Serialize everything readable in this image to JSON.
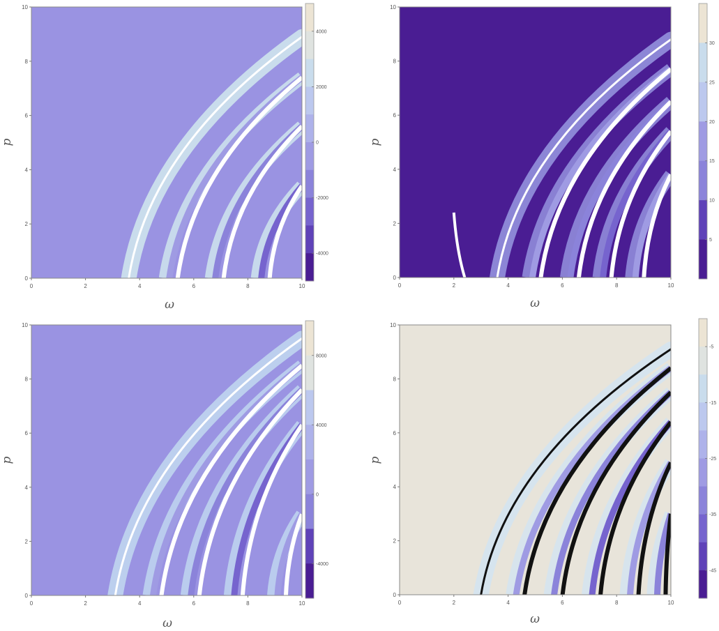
{
  "chart_data": [
    {
      "type": "heatmap",
      "title": "",
      "xlabel": "ω",
      "ylabel": "p",
      "xlim": [
        0,
        10
      ],
      "ylim": [
        0,
        10
      ],
      "x_ticks": [
        "0",
        "2",
        "4",
        "6",
        "8",
        "10"
      ],
      "y_ticks": [
        "0",
        "2",
        "4",
        "6",
        "8",
        "10"
      ],
      "colorbar": {
        "range": [
          -5000,
          5000
        ],
        "labels": [
          "-4000",
          "-2000",
          "0",
          "2000",
          "4000"
        ],
        "label_values": [
          -4000,
          -2000,
          0,
          2000,
          4000
        ],
        "bands": 10
      },
      "background_color": "#9a93e2",
      "contour_color": "#9e97da",
      "branch_fill": "#c9dcec",
      "branch_stroke": "#ffffff",
      "front": {
        "start": [
          3.6,
          0
        ],
        "end": [
          10,
          8.9
        ]
      },
      "curves": [
        {
          "start": [
            5.2,
            0
          ],
          "end": [
            10,
            7.4
          ]
        },
        {
          "start": [
            6.9,
            0
          ],
          "end": [
            10,
            5.6
          ]
        },
        {
          "start": [
            8.6,
            0
          ],
          "end": [
            10,
            3.4
          ]
        }
      ]
    },
    {
      "type": "heatmap",
      "title": "",
      "xlabel": "ω",
      "ylabel": "p",
      "xlim": [
        0,
        10
      ],
      "ylim": [
        0,
        10
      ],
      "x_ticks": [
        "0",
        "2",
        "4",
        "6",
        "8",
        "10"
      ],
      "y_ticks": [
        "0",
        "2",
        "4",
        "6",
        "8",
        "10"
      ],
      "colorbar": {
        "range": [
          0,
          35
        ],
        "labels": [
          "5",
          "10",
          "15",
          "20",
          "25",
          "30"
        ],
        "label_values": [
          5,
          10,
          15,
          20,
          25,
          30
        ],
        "bands": 7
      },
      "background_color": "#4a1d93",
      "branch_fill": "#8c86d6",
      "branch_stroke": "#ffffff",
      "front": {
        "start": [
          3.6,
          0
        ],
        "end": [
          10,
          8.8
        ]
      },
      "spur": {
        "start": [
          2.0,
          2.4
        ],
        "end": [
          2.4,
          0
        ]
      },
      "curves": [
        {
          "start": [
            5.0,
            0
          ],
          "end": [
            10,
            7.7
          ]
        },
        {
          "start": [
            6.4,
            0
          ],
          "end": [
            10,
            6.5
          ]
        },
        {
          "start": [
            7.6,
            0
          ],
          "end": [
            10,
            5.4
          ]
        },
        {
          "start": [
            8.8,
            0
          ],
          "end": [
            10,
            3.8
          ]
        }
      ]
    },
    {
      "type": "heatmap",
      "title": "",
      "xlabel": "ω",
      "ylabel": "p",
      "xlim": [
        0,
        10
      ],
      "ylim": [
        0,
        10
      ],
      "x_ticks": [
        "0",
        "2",
        "4",
        "6",
        "8",
        "10"
      ],
      "y_ticks": [
        "0",
        "2",
        "4",
        "6",
        "8",
        "10"
      ],
      "colorbar": {
        "range": [
          -6000,
          10000
        ],
        "labels": [
          "-4000",
          "0",
          "4000",
          "8000"
        ],
        "label_values": [
          -4000,
          0,
          4000,
          8000
        ],
        "bands": 8
      },
      "background_color": "#9a93e2",
      "branch_fill": "#bccfee",
      "branch_stroke": "#ffffff",
      "front": {
        "start": [
          3.1,
          0
        ],
        "end": [
          10,
          9.5
        ]
      },
      "curves": [
        {
          "start": [
            4.6,
            0
          ],
          "end": [
            10,
            8.5
          ]
        },
        {
          "start": [
            6.0,
            0
          ],
          "end": [
            10,
            7.6
          ]
        },
        {
          "start": [
            7.6,
            0
          ],
          "end": [
            10,
            6.3
          ]
        },
        {
          "start": [
            9.2,
            0
          ],
          "end": [
            10,
            3.0
          ]
        }
      ]
    },
    {
      "type": "heatmap",
      "title": "",
      "xlabel": "ω",
      "ylabel": "p",
      "xlim": [
        0,
        10
      ],
      "ylim": [
        0,
        10
      ],
      "x_ticks": [
        "0",
        "2",
        "4",
        "6",
        "8",
        "10"
      ],
      "y_ticks": [
        "0",
        "2",
        "4",
        "6",
        "8",
        "10"
      ],
      "colorbar": {
        "range": [
          -50,
          0
        ],
        "labels": [
          "-5",
          "-15",
          "-25",
          "-35",
          "-45"
        ],
        "label_values": [
          -5,
          -15,
          -25,
          -35,
          -45
        ],
        "bands": 10
      },
      "background_color": "#e8e4da",
      "branch_fill": "#d6e4ee",
      "branch_stroke": "#111111",
      "front": {
        "start": [
          3.0,
          0
        ],
        "end": [
          10,
          9.1
        ]
      },
      "curves": [
        {
          "start": [
            4.4,
            0
          ],
          "end": [
            10,
            8.4
          ]
        },
        {
          "start": [
            5.8,
            0
          ],
          "end": [
            10,
            7.5
          ]
        },
        {
          "start": [
            7.2,
            0
          ],
          "end": [
            10,
            6.4
          ]
        },
        {
          "start": [
            8.6,
            0
          ],
          "end": [
            10,
            4.9
          ]
        },
        {
          "start": [
            9.6,
            0
          ],
          "end": [
            10,
            3.0
          ]
        }
      ]
    }
  ]
}
